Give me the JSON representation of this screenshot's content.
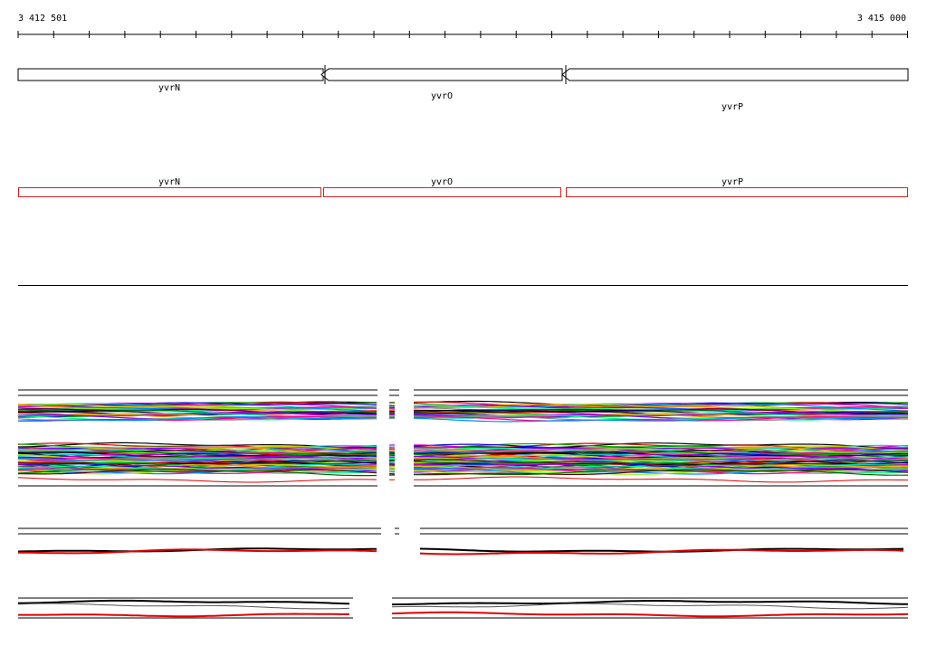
{
  "ruler": {
    "start": "3 412 501",
    "end": "3 415 000"
  },
  "gene_track": {
    "genes": [
      "yvrN",
      "yvrO",
      "yvrP"
    ]
  },
  "feature_track": {
    "labels": [
      "yvrN",
      "yvrO",
      "yvrP"
    ]
  }
}
